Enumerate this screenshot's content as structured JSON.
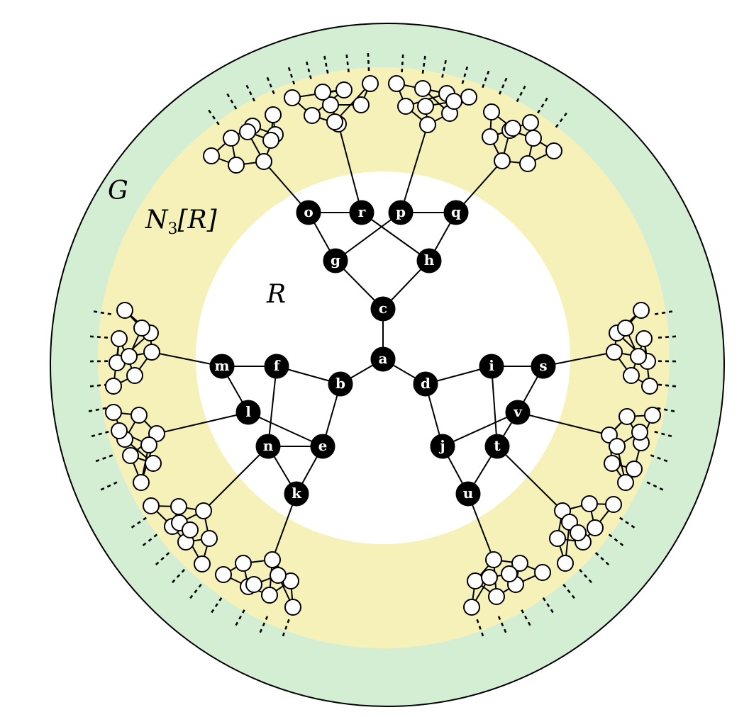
{
  "labels": {
    "outer": "G",
    "middle_main": "N",
    "middle_sub": "3",
    "middle_arg": "[R]",
    "inner": "R"
  },
  "colors": {
    "outer_ring": "#d4eed3",
    "middle_ring": "#f6f1b8",
    "inner_disk": "#ffffff",
    "core_node": "#000000",
    "leaf_node": "#ffffff"
  },
  "core_nodes": [
    "a",
    "b",
    "c",
    "d",
    "e",
    "f",
    "g",
    "h",
    "i",
    "j",
    "k",
    "l",
    "m",
    "n",
    "o",
    "p",
    "q",
    "r",
    "s",
    "t",
    "u",
    "v"
  ]
}
